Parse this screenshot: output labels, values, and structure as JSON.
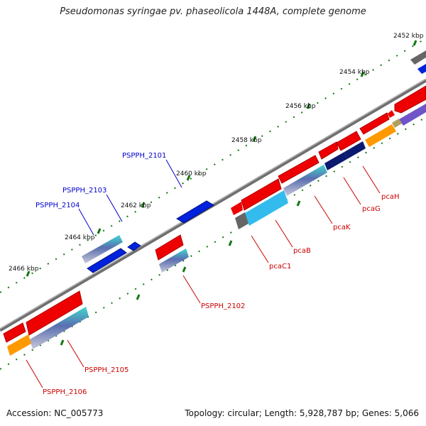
{
  "title": "Pseudomonas syringae pv. phaseolicola 1448A, complete genome",
  "footer": {
    "accession": "Accession: NC_005773",
    "topology": "Topology: circular; Length: 5,928,787 bp; Genes: 5,066"
  },
  "ticks": [
    "2452 kbp",
    "2454 kbp",
    "2456 kbp",
    "2458 kbp",
    "2460 kbp",
    "2462 kbp",
    "2464 kbp",
    "2466 kbp"
  ],
  "labels_forward": [
    "PSPPH_2101",
    "PSPPH_2103",
    "PSPPH_2104"
  ],
  "labels_reverse": [
    "pcaH",
    "pcaG",
    "pcaK",
    "pcaB",
    "pcaC1",
    "PSPPH_2102",
    "PSPPH_2105",
    "PSPPH_2106"
  ],
  "colors": {
    "forward_label": "#0000cc",
    "reverse_label": "#cc0000",
    "gene_red": "#ee0000",
    "gene_blue": "#0022dd",
    "backbone": "#888888",
    "tick": "#117711"
  }
}
